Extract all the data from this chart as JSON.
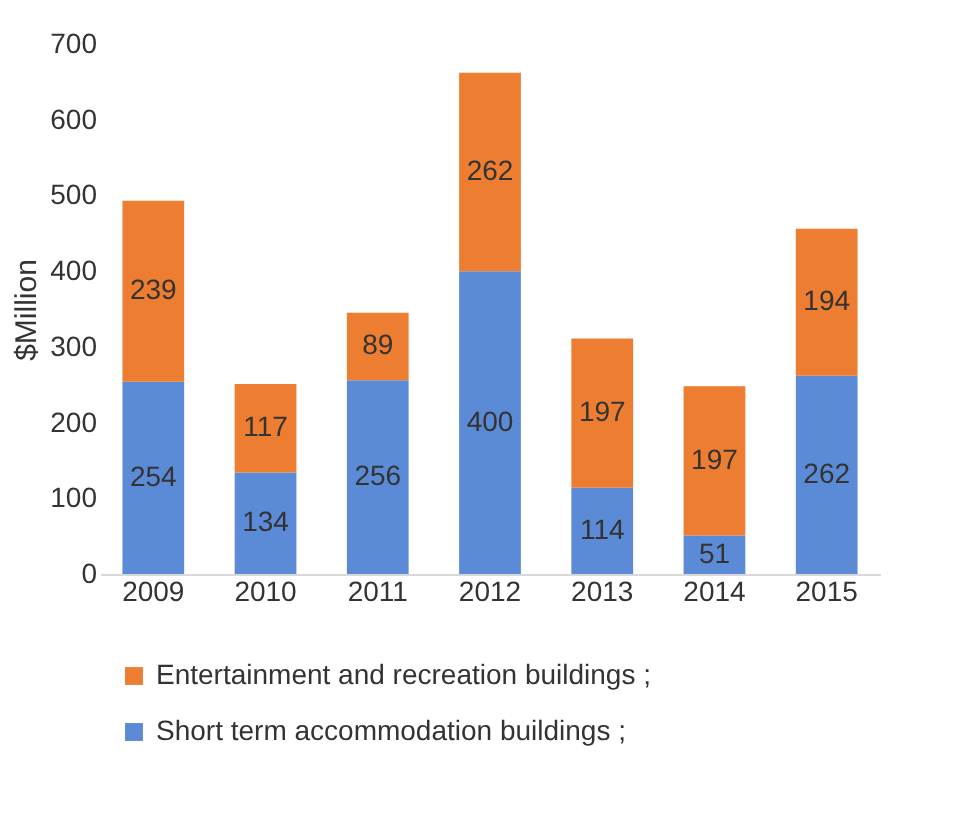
{
  "chart_data": {
    "type": "bar",
    "stacked": true,
    "ylabel": "$Million",
    "categories": [
      "2009",
      "2010",
      "2011",
      "2012",
      "2013",
      "2014",
      "2015"
    ],
    "series": [
      {
        "name": "Short term accommodation buildings ;",
        "color": "#5b8bd6",
        "values": [
          254,
          134,
          256,
          400,
          114,
          51,
          262
        ]
      },
      {
        "name": "Entertainment and recreation buildings ;",
        "color": "#ed7d31",
        "values": [
          239,
          117,
          89,
          262,
          197,
          197,
          194
        ]
      }
    ],
    "ylim": [
      0,
      700
    ],
    "yticks": [
      0,
      100,
      200,
      300,
      400,
      500,
      600,
      700
    ],
    "data_labels": true,
    "legend": "bottom",
    "grid": false
  }
}
